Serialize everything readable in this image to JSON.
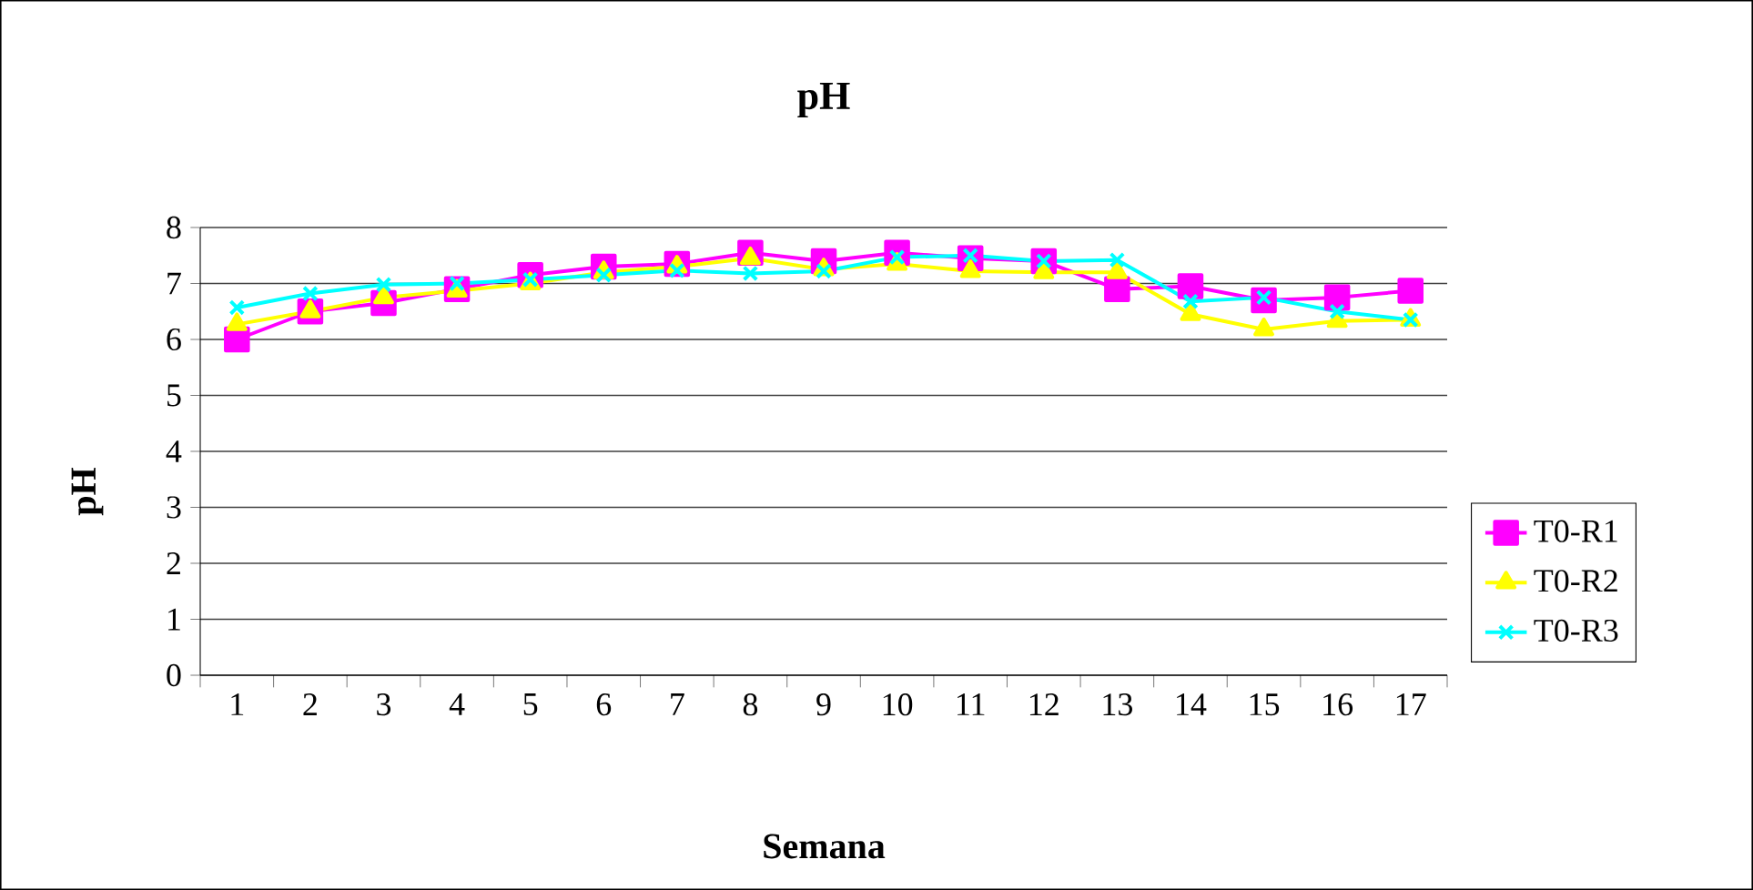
{
  "chart_data": {
    "type": "line",
    "title": "pH",
    "xlabel": "Semana",
    "ylabel": "pH",
    "categories": [
      "1",
      "2",
      "3",
      "4",
      "5",
      "6",
      "7",
      "8",
      "9",
      "10",
      "11",
      "12",
      "13",
      "14",
      "15",
      "16",
      "17"
    ],
    "ylim": [
      0,
      8
    ],
    "yticks": [
      0,
      1,
      2,
      3,
      4,
      5,
      6,
      7,
      8
    ],
    "grid": "y",
    "legend": "right",
    "series": [
      {
        "name": "T0-R1",
        "color": "#ff00ff",
        "marker": "square",
        "values": [
          6.0,
          6.5,
          6.65,
          6.9,
          7.15,
          7.3,
          7.35,
          7.55,
          7.4,
          7.55,
          7.45,
          7.4,
          6.9,
          6.95,
          6.7,
          6.75,
          6.87
        ]
      },
      {
        "name": "T0-R2",
        "color": "#ffff00",
        "marker": "triangle",
        "values": [
          6.27,
          6.5,
          6.75,
          6.87,
          7.0,
          7.2,
          7.3,
          7.45,
          7.25,
          7.35,
          7.22,
          7.2,
          7.2,
          6.45,
          6.18,
          6.33,
          6.35
        ]
      },
      {
        "name": "T0-R3",
        "color": "#00ffff",
        "marker": "cross",
        "values": [
          6.57,
          6.82,
          6.98,
          7.0,
          7.07,
          7.15,
          7.23,
          7.18,
          7.22,
          7.47,
          7.5,
          7.4,
          7.42,
          6.68,
          6.75,
          6.5,
          6.35
        ]
      }
    ]
  }
}
